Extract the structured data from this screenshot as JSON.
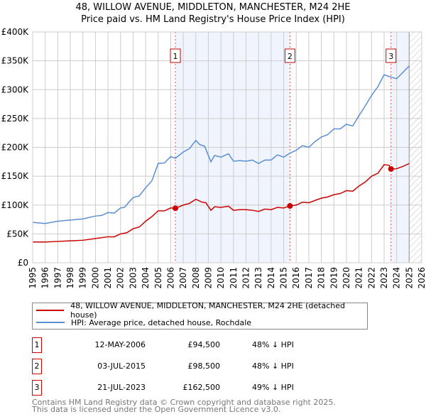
{
  "header": {
    "title": "48, WILLOW AVENUE, MIDDLETON, MANCHESTER, M24 2HE",
    "subtitle": "Price paid vs. HM Land Registry's House Price Index (HPI)"
  },
  "chart_data": {
    "type": "line",
    "title": "48, WILLOW AVENUE, MIDDLETON, MANCHESTER, M24 2HE",
    "subtitle": "Price paid vs. HM Land Registry's House Price Index (HPI)",
    "xlim": [
      1995,
      2026
    ],
    "ylim": [
      0,
      400000
    ],
    "x_ticks": [
      "1995",
      "1996",
      "1997",
      "1998",
      "1999",
      "2000",
      "2001",
      "2002",
      "2003",
      "2004",
      "2005",
      "2006",
      "2007",
      "2008",
      "2009",
      "2010",
      "2011",
      "2012",
      "2013",
      "2014",
      "2015",
      "2016",
      "2017",
      "2018",
      "2019",
      "2020",
      "2021",
      "2022",
      "2023",
      "2024",
      "2025",
      "2026"
    ],
    "y_ticks": [
      {
        "v": 0,
        "label": "£0"
      },
      {
        "v": 50000,
        "label": "£50K"
      },
      {
        "v": 100000,
        "label": "£100K"
      },
      {
        "v": 150000,
        "label": "£150K"
      },
      {
        "v": 200000,
        "label": "£200K"
      },
      {
        "v": 250000,
        "label": "£250K"
      },
      {
        "v": 300000,
        "label": "£300K"
      },
      {
        "v": 350000,
        "label": "£350K"
      },
      {
        "v": 400000,
        "label": "£400K"
      }
    ],
    "grid": true,
    "series": [
      {
        "name": "48, WILLOW AVENUE, MIDDLETON, MANCHESTER, M24 2HE (detached house)",
        "color": "#cc0000",
        "points": [
          [
            1995,
            36
          ],
          [
            1996,
            36
          ],
          [
            1997,
            37
          ],
          [
            1998,
            38
          ],
          [
            1999,
            39
          ],
          [
            2000,
            42
          ],
          [
            2001,
            45
          ],
          [
            2001.5,
            45
          ],
          [
            2002,
            50
          ],
          [
            2002.5,
            52
          ],
          [
            2003,
            59
          ],
          [
            2003.5,
            62
          ],
          [
            2004,
            72
          ],
          [
            2004.5,
            80
          ],
          [
            2005,
            90
          ],
          [
            2005.5,
            90
          ],
          [
            2006,
            95
          ],
          [
            2006.37,
            94.5
          ],
          [
            2007,
            100
          ],
          [
            2007.5,
            103
          ],
          [
            2008,
            110
          ],
          [
            2008.5,
            105
          ],
          [
            2008.8,
            104
          ],
          [
            2009.2,
            91
          ],
          [
            2009.5,
            97
          ],
          [
            2010,
            96
          ],
          [
            2010.6,
            98
          ],
          [
            2011,
            91
          ],
          [
            2011.5,
            92
          ],
          [
            2012,
            92
          ],
          [
            2012.5,
            91
          ],
          [
            2013,
            89
          ],
          [
            2013.5,
            93
          ],
          [
            2014,
            92
          ],
          [
            2014.5,
            96
          ],
          [
            2015,
            95
          ],
          [
            2015.5,
            98.5
          ],
          [
            2016,
            100
          ],
          [
            2016.5,
            105
          ],
          [
            2017,
            104
          ],
          [
            2017.5,
            108
          ],
          [
            2018,
            112
          ],
          [
            2018.5,
            114
          ],
          [
            2019,
            118
          ],
          [
            2019.5,
            120
          ],
          [
            2020,
            125
          ],
          [
            2020.5,
            124
          ],
          [
            2021,
            133
          ],
          [
            2021.5,
            140
          ],
          [
            2022,
            150
          ],
          [
            2022.5,
            155
          ],
          [
            2023,
            170
          ],
          [
            2023.4,
            169
          ],
          [
            2023.55,
            162.5
          ],
          [
            2024,
            163
          ],
          [
            2024.5,
            167
          ],
          [
            2025,
            172
          ]
        ]
      },
      {
        "name": "HPI: Average price, detached house, Rochdale",
        "color": "#5b8fd4",
        "points": [
          [
            1995,
            70
          ],
          [
            1996,
            68
          ],
          [
            1997,
            72
          ],
          [
            1998,
            74
          ],
          [
            1999,
            76
          ],
          [
            2000,
            81
          ],
          [
            2000.5,
            82
          ],
          [
            2001,
            87
          ],
          [
            2001.5,
            86
          ],
          [
            2002,
            95
          ],
          [
            2002.3,
            96
          ],
          [
            2003,
            113
          ],
          [
            2003.5,
            116
          ],
          [
            2004,
            130
          ],
          [
            2004.5,
            142
          ],
          [
            2005,
            172
          ],
          [
            2005.5,
            173
          ],
          [
            2006,
            184
          ],
          [
            2006.37,
            181
          ],
          [
            2007,
            192
          ],
          [
            2007.5,
            198
          ],
          [
            2008,
            212
          ],
          [
            2008.3,
            205
          ],
          [
            2008.7,
            202
          ],
          [
            2009.2,
            175
          ],
          [
            2009.5,
            186
          ],
          [
            2010,
            183
          ],
          [
            2010.6,
            189
          ],
          [
            2011,
            176
          ],
          [
            2011.5,
            177
          ],
          [
            2012,
            176
          ],
          [
            2012.5,
            178
          ],
          [
            2013,
            172
          ],
          [
            2013.5,
            178
          ],
          [
            2014,
            178
          ],
          [
            2014.5,
            187
          ],
          [
            2015,
            183
          ],
          [
            2015.5,
            190
          ],
          [
            2016,
            195
          ],
          [
            2016.5,
            203
          ],
          [
            2017,
            200
          ],
          [
            2017.5,
            210
          ],
          [
            2018,
            218
          ],
          [
            2018.5,
            222
          ],
          [
            2019,
            232
          ],
          [
            2019.5,
            232
          ],
          [
            2020,
            240
          ],
          [
            2020.5,
            237
          ],
          [
            2021,
            255
          ],
          [
            2021.5,
            272
          ],
          [
            2022,
            290
          ],
          [
            2022.5,
            305
          ],
          [
            2023,
            326
          ],
          [
            2023.5,
            322
          ],
          [
            2024,
            319
          ],
          [
            2024.5,
            330
          ],
          [
            2025,
            341
          ]
        ]
      }
    ],
    "value_unit": "£K",
    "sales": [
      {
        "id": "1",
        "x": 2006.37,
        "value": 94500
      },
      {
        "id": "2",
        "x": 2015.5,
        "value": 98500
      },
      {
        "id": "3",
        "x": 2023.55,
        "value": 162500
      }
    ],
    "shaded_ranges": [
      [
        2006.37,
        2015.5
      ],
      [
        2023.55,
        2025
      ]
    ],
    "forecast_hatch_from": 2025,
    "legend_placement": "below"
  },
  "legend": {
    "items": [
      {
        "label": "48, WILLOW AVENUE, MIDDLETON, MANCHESTER, M24 2HE (detached house)",
        "color": "#cc0000"
      },
      {
        "label": "HPI: Average price, detached house, Rochdale",
        "color": "#5b8fd4"
      }
    ]
  },
  "transactions": [
    {
      "num": "1",
      "date": "12-MAY-2006",
      "price": "£94,500",
      "pct": "48% ↓ HPI"
    },
    {
      "num": "2",
      "date": "03-JUL-2015",
      "price": "£98,500",
      "pct": "48% ↓ HPI"
    },
    {
      "num": "3",
      "date": "21-JUL-2023",
      "price": "£162,500",
      "pct": "49% ↓ HPI"
    }
  ],
  "footer": {
    "line1": "Contains HM Land Registry data © Crown copyright and database right 2025.",
    "line2": "This data is licensed under the Open Government Licence v3.0."
  }
}
